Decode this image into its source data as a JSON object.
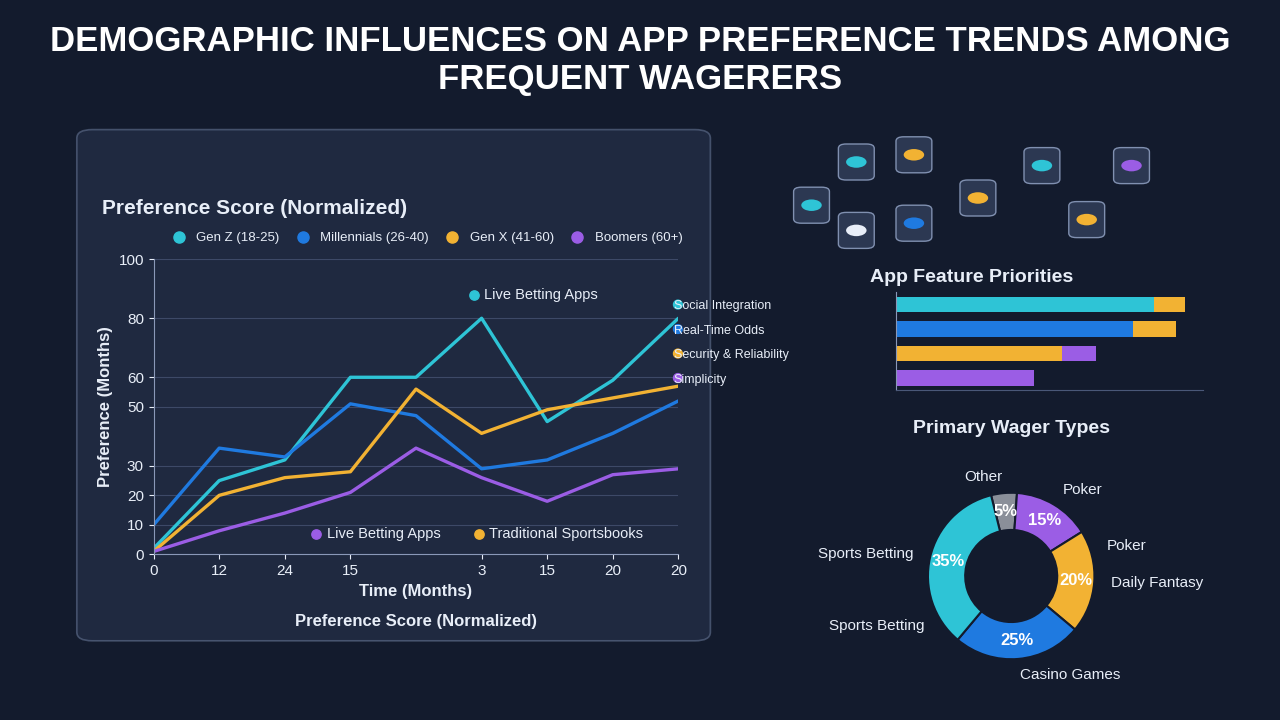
{
  "title": "DEMOGRAPHIC INFLUENCES ON APP PREFERENCE TRENDS AMONG FREQUENT WAGERERS",
  "chart_data": [
    {
      "type": "line",
      "title": "Preference Score (Normalized)",
      "x_label": "Time (Months)",
      "x_sublabel": "Preference Score (Normalized)",
      "y_label": "Preference (Months)",
      "categories": [
        "0",
        "12",
        "24",
        "15",
        null,
        "3",
        "15",
        "20",
        "20"
      ],
      "series": [
        {
          "name": "Gen Z (18-25)",
          "color": "#2ec4d6",
          "values": [
            2,
            25,
            32,
            60,
            60,
            80,
            45,
            59,
            80
          ]
        },
        {
          "name": "Millennials (26-40)",
          "color": "#1f7ae0",
          "values": [
            10,
            36,
            33,
            51,
            47,
            29,
            32,
            41,
            52
          ]
        },
        {
          "name": "Gen X (41-60)",
          "color": "#f2b233",
          "values": [
            1,
            20,
            26,
            28,
            56,
            41,
            49,
            53,
            57
          ]
        },
        {
          "name": "Boomers (60+)",
          "color": "#9b5de5",
          "values": [
            1,
            8,
            14,
            21,
            36,
            26,
            18,
            27,
            29
          ]
        }
      ],
      "ylim": [
        0,
        100
      ],
      "yticks": [
        0,
        10,
        20,
        30,
        50,
        60,
        80,
        100
      ],
      "grid": true,
      "legend": "top",
      "annotations": [
        {
          "text": "Live Betting Apps",
          "color": "#2ec4d6"
        },
        {
          "text": "Live Betting Apps",
          "color": "#9b5de5"
        },
        {
          "text": "Traditional Sportsbooks",
          "color": "#f2b233"
        }
      ]
    },
    {
      "type": "bar",
      "title": "App Feature Priorities",
      "orientation": "horizontal",
      "stacked": true,
      "tick_labels": "y",
      "categories": [
        "Social Integration",
        "Real-Time Odds",
        "Security & Reliability",
        "Simplicity"
      ],
      "series": [
        {
          "colors": [
            "#2ec4d6",
            "#1f7ae0",
            "#f2b233",
            "#9b5de5"
          ],
          "values": [
            84,
            77,
            54,
            45
          ]
        },
        {
          "colors": [
            "#f2b233",
            "#f2b233",
            "#9b5de5",
            "#9b5de5"
          ],
          "values": [
            10,
            14,
            11,
            0
          ]
        }
      ],
      "xlim": [
        0,
        100
      ]
    },
    {
      "type": "pie",
      "title": "Primary Wager Types",
      "categories": [
        "Other",
        "Poker",
        "Daily Fantasy",
        "Casino Games",
        "Sports Betting"
      ],
      "values": [
        5,
        15,
        20,
        25,
        35
      ],
      "value_labels": [
        "5%",
        "15%",
        "20%",
        "25%",
        "35%"
      ],
      "colors": [
        "#8a8f99",
        "#9b5de5",
        "#f2b233",
        "#1f7ae0",
        "#2ec4d6"
      ],
      "data_labels": true,
      "annotations": [
        {
          "text": "Poker",
          "category": "Daily Fantasy"
        },
        {
          "text": "Sports Betting",
          "category": "Casino Games"
        }
      ]
    }
  ]
}
